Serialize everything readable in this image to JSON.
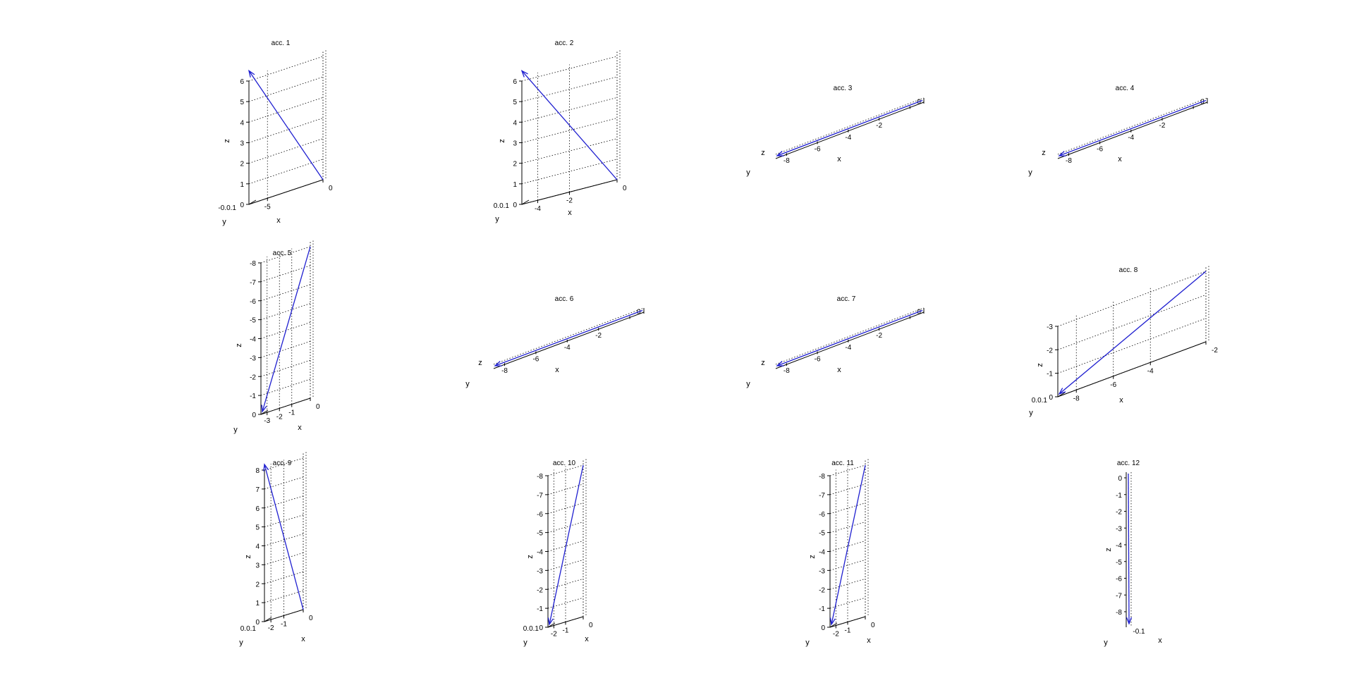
{
  "figure": {
    "background": "#ffffff",
    "vector_color": "#1f1fd0"
  },
  "chart_data": [
    {
      "title": "acc. 1",
      "type": "quiver3d",
      "vector": {
        "x": -8.3,
        "y": 0,
        "z": 6.5
      },
      "xlabel": "x",
      "ylabel": "y",
      "zlabel": "z",
      "x_ticks": [
        "-5",
        "0"
      ],
      "z_ticks": [
        "0",
        "1",
        "2",
        "3",
        "4",
        "5",
        "6"
      ],
      "y_tick_cluster": "-0.0.1",
      "grid": true
    },
    {
      "title": "acc. 2",
      "type": "quiver3d",
      "vector": {
        "x": -8.3,
        "y": 0,
        "z": 6.5
      },
      "xlabel": "x",
      "ylabel": "y",
      "zlabel": "z",
      "x_ticks": [
        "-4",
        "-2",
        "0"
      ],
      "z_ticks": [
        "0",
        "1",
        "2",
        "3",
        "4",
        "5",
        "6"
      ],
      "y_tick_cluster": "0.0.1",
      "grid": true
    },
    {
      "title": "acc. 3",
      "type": "quiver3d",
      "vector": {
        "x": -9,
        "y": 0,
        "z": 0
      },
      "xlabel": "x",
      "ylabel": "y",
      "zlabel": "z",
      "x_ticks": [
        "-8",
        "-6",
        "-4",
        "-2",
        "0"
      ],
      "z_ticks": [],
      "grid": true
    },
    {
      "title": "acc. 4",
      "type": "quiver3d",
      "vector": {
        "x": -9,
        "y": 0,
        "z": 0
      },
      "xlabel": "x",
      "ylabel": "y",
      "zlabel": "z",
      "x_ticks": [
        "-8",
        "-6",
        "-4",
        "-2",
        "0"
      ],
      "z_ticks": [],
      "grid": true
    },
    {
      "title": "acc. 5",
      "type": "quiver3d",
      "vector": {
        "x": -3.5,
        "y": 0,
        "z": -8.3
      },
      "xlabel": "x",
      "ylabel": "y",
      "zlabel": "z",
      "x_ticks": [
        "-3",
        "-2",
        "-1",
        "0"
      ],
      "z_ticks": [
        "0",
        "-1",
        "-2",
        "-3",
        "-4",
        "-5",
        "-6",
        "-7",
        "-8"
      ],
      "grid": true
    },
    {
      "title": "acc. 6",
      "type": "quiver3d",
      "vector": {
        "x": -9,
        "y": 0,
        "z": 0
      },
      "xlabel": "x",
      "ylabel": "y",
      "zlabel": "z",
      "x_ticks": [
        "-8",
        "-6",
        "-4",
        "-2",
        "0"
      ],
      "z_ticks": [],
      "grid": true
    },
    {
      "title": "acc. 7",
      "type": "quiver3d",
      "vector": {
        "x": -9,
        "y": 0,
        "z": 0
      },
      "xlabel": "x",
      "ylabel": "y",
      "zlabel": "z",
      "x_ticks": [
        "-8",
        "-6",
        "-4",
        "-2",
        "0"
      ],
      "z_ticks": [],
      "grid": true
    },
    {
      "title": "acc. 8",
      "type": "quiver3d",
      "vector": {
        "x": -9,
        "y": 0,
        "z": -3.2
      },
      "xlabel": "x",
      "ylabel": "y",
      "zlabel": "z",
      "x_ticks": [
        "-8",
        "-6",
        "-4",
        "-2"
      ],
      "z_ticks": [
        "0",
        "-1",
        "-2",
        "-3"
      ],
      "y_tick_cluster": "0.0.1",
      "grid": true
    },
    {
      "title": "acc. 9",
      "type": "quiver3d",
      "vector": {
        "x": -2.7,
        "y": 0,
        "z": 8.3
      },
      "xlabel": "x",
      "ylabel": "y",
      "zlabel": "z",
      "x_ticks": [
        "-2",
        "-1",
        "0"
      ],
      "z_ticks": [
        "0",
        "1",
        "2",
        "3",
        "4",
        "5",
        "6",
        "7",
        "8"
      ],
      "y_tick_cluster": "0.0.1",
      "grid": true
    },
    {
      "title": "acc. 10",
      "type": "quiver3d",
      "vector": {
        "x": -2.7,
        "y": 0,
        "z": -8.8
      },
      "xlabel": "x",
      "ylabel": "y",
      "zlabel": "z",
      "x_ticks": [
        "-2",
        "-1",
        "0"
      ],
      "z_ticks": [
        "0",
        "-1",
        "-2",
        "-3",
        "-4",
        "-5",
        "-6",
        "-7",
        "-8"
      ],
      "y_tick_cluster": "0.0.1",
      "grid": true
    },
    {
      "title": "acc. 11",
      "type": "quiver3d",
      "vector": {
        "x": -2.7,
        "y": 0,
        "z": -8.8
      },
      "xlabel": "x",
      "ylabel": "y",
      "zlabel": "z",
      "x_ticks": [
        "-2",
        "-1",
        "0"
      ],
      "z_ticks": [
        "0",
        "-1",
        "-2",
        "-3",
        "-4",
        "-5",
        "-6",
        "-7",
        "-8"
      ],
      "grid": true
    },
    {
      "title": "acc. 12",
      "type": "quiver3d",
      "vector": {
        "x": -0.1,
        "y": 0,
        "z": -9.2
      },
      "xlabel": "x",
      "ylabel": "y",
      "zlabel": "z",
      "x_ticks": [
        "-0.1"
      ],
      "z_ticks": [
        "0",
        "-1",
        "-2",
        "-3",
        "-4",
        "-5",
        "-6",
        "-7",
        "-8"
      ],
      "grid": true
    }
  ]
}
